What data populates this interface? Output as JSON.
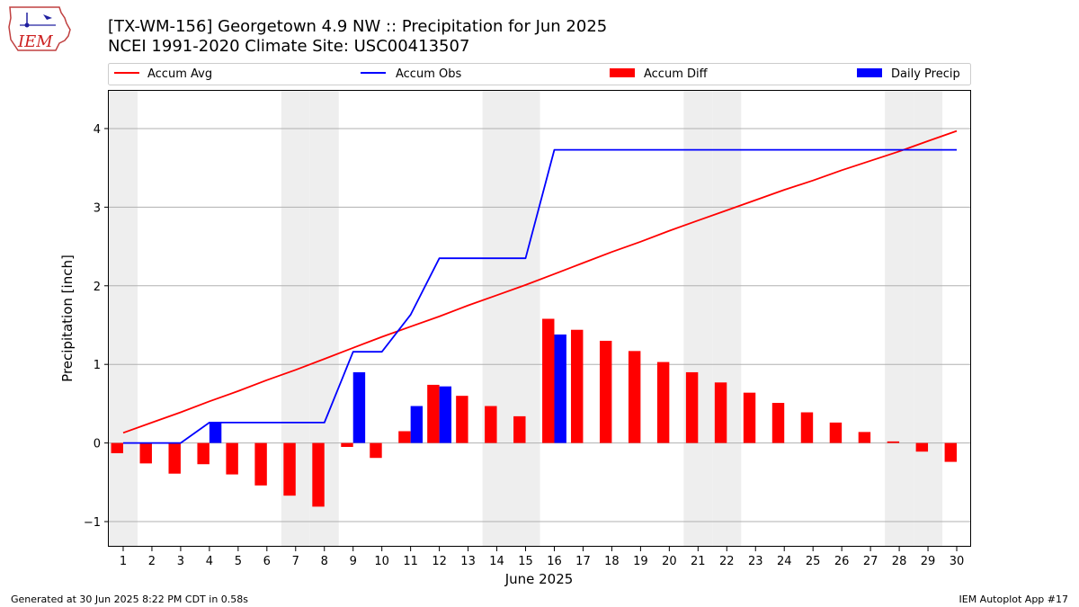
{
  "header": {
    "title_line1": "[TX-WM-156] Georgetown 4.9 NW :: Precipitation for Jun 2025",
    "title_line2": "NCEI 1991-2020 Climate Site: USC00413507"
  },
  "logo": {
    "text": "IEM",
    "icon": "iowa-state-outline-icon"
  },
  "footer": {
    "generated": "Generated at 30 Jun 2025 8:22 PM CDT in 0.58s",
    "app": "IEM Autoplot App #17"
  },
  "colors": {
    "accum_avg": "#ff0000",
    "accum_obs": "#0000ff",
    "accum_diff": "#ff0000",
    "daily_precip": "#0000ff",
    "weekend_shade": "#eeeeee",
    "grid": "#b0b0b0"
  },
  "chart_data": {
    "type": "bar",
    "xlabel": "June 2025",
    "ylabel": "Precipitation [inch]",
    "xlim": [
      0.5,
      30.5
    ],
    "ylim": [
      -1.32,
      4.48
    ],
    "yticks": [
      -1,
      0,
      1,
      2,
      3,
      4
    ],
    "ytick_labels": [
      "−1",
      "0",
      "1",
      "2",
      "3",
      "4"
    ],
    "grid": "horizontal",
    "legend_position": "top",
    "categories": [
      "1",
      "2",
      "3",
      "4",
      "5",
      "6",
      "7",
      "8",
      "9",
      "10",
      "11",
      "12",
      "13",
      "14",
      "15",
      "16",
      "17",
      "18",
      "19",
      "20",
      "21",
      "22",
      "23",
      "24",
      "25",
      "26",
      "27",
      "28",
      "29",
      "30"
    ],
    "weekend_days": [
      1,
      7,
      8,
      14,
      15,
      21,
      22,
      28,
      29
    ],
    "series": [
      {
        "name": "Accum Avg",
        "kind": "line",
        "values": [
          0.13,
          0.26,
          0.39,
          0.53,
          0.66,
          0.8,
          0.93,
          1.07,
          1.21,
          1.35,
          1.48,
          1.61,
          1.75,
          1.88,
          2.01,
          2.15,
          2.29,
          2.43,
          2.56,
          2.7,
          2.83,
          2.96,
          3.09,
          3.22,
          3.34,
          3.47,
          3.59,
          3.71,
          3.84,
          3.97
        ]
      },
      {
        "name": "Accum Obs",
        "kind": "line",
        "values": [
          0.0,
          0.0,
          0.0,
          0.26,
          0.26,
          0.26,
          0.26,
          0.26,
          1.16,
          1.16,
          1.63,
          2.35,
          2.35,
          2.35,
          2.35,
          3.73,
          3.73,
          3.73,
          3.73,
          3.73,
          3.73,
          3.73,
          3.73,
          3.73,
          3.73,
          3.73,
          3.73,
          3.73,
          3.73,
          3.73
        ]
      },
      {
        "name": "Accum Diff",
        "kind": "bar",
        "values": [
          -0.13,
          -0.26,
          -0.39,
          -0.27,
          -0.4,
          -0.54,
          -0.67,
          -0.81,
          -0.05,
          -0.19,
          0.15,
          0.74,
          0.6,
          0.47,
          0.34,
          1.58,
          1.44,
          1.3,
          1.17,
          1.03,
          0.9,
          0.77,
          0.64,
          0.51,
          0.39,
          0.26,
          0.14,
          0.02,
          -0.11,
          -0.24
        ]
      },
      {
        "name": "Daily Precip",
        "kind": "bar",
        "values": [
          0,
          0,
          0,
          0.26,
          0,
          0,
          0,
          0,
          0.9,
          0,
          0.47,
          0.72,
          0,
          0,
          0,
          1.38,
          0,
          0,
          0,
          0,
          0,
          0,
          0,
          0,
          0,
          0,
          0,
          0,
          0,
          0
        ]
      }
    ]
  }
}
